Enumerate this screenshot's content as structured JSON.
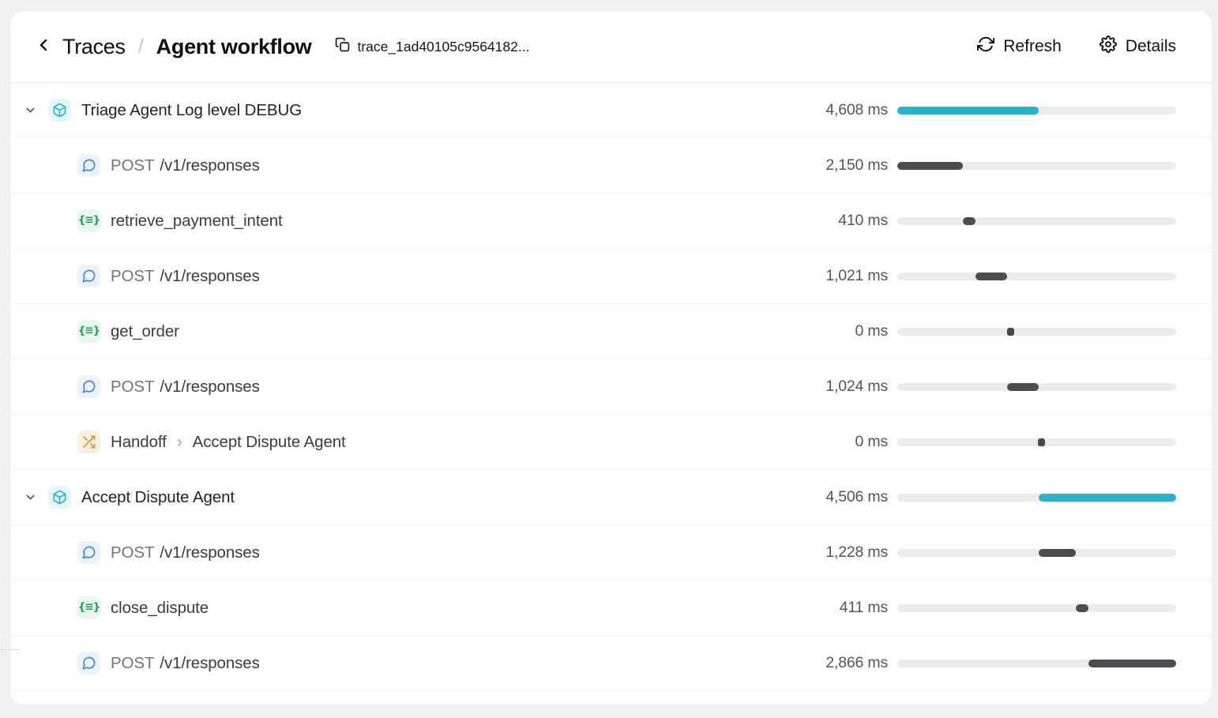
{
  "header": {
    "breadcrumb_parent": "Traces",
    "breadcrumb_separator": "/",
    "title": "Agent workflow",
    "trace_id": "trace_1ad40105c9564182...",
    "refresh_label": "Refresh",
    "details_label": "Details"
  },
  "timeline": {
    "total_ms": 9114,
    "track_color": "#ececee",
    "accent_color": "#2ab2ca",
    "dark_color": "#4d4d51",
    "tick_color": "#47474b"
  },
  "icon_styles": {
    "agent": {
      "name": "agent-cube-icon",
      "color": "#21b1c9",
      "bg": "#e6f6fa"
    },
    "http": {
      "name": "chat-bubble-icon",
      "color": "#3f83f7",
      "bg": "#edf3fe"
    },
    "function": {
      "name": "function-braces-icon",
      "color": "#18a34b",
      "bg": "#e9f7ee",
      "glyph": "{≡}"
    },
    "handoff": {
      "name": "handoff-shuffle-icon",
      "color": "#d3993f",
      "bg": "#faf0df"
    }
  },
  "rows": [
    {
      "kind": "agent",
      "depth": 0,
      "expanded": true,
      "label": "Triage Agent Log level DEBUG",
      "duration": "4,608 ms",
      "bar": {
        "left_pct": 0,
        "width_pct": 50.6,
        "variant": "accent"
      }
    },
    {
      "kind": "http",
      "depth": 1,
      "method": "POST",
      "path": "/v1/responses",
      "duration": "2,150 ms",
      "bar": {
        "left_pct": 0,
        "width_pct": 23.6,
        "variant": "dark"
      }
    },
    {
      "kind": "function",
      "depth": 1,
      "label": "retrieve_payment_intent",
      "duration": "410 ms",
      "bar": {
        "left_pct": 23.6,
        "width_pct": 4.5,
        "variant": "dark"
      }
    },
    {
      "kind": "http",
      "depth": 1,
      "method": "POST",
      "path": "/v1/responses",
      "duration": "1,021 ms",
      "bar": {
        "left_pct": 28.1,
        "width_pct": 11.2,
        "variant": "dark"
      }
    },
    {
      "kind": "function",
      "depth": 1,
      "label": "get_order",
      "duration": "0 ms",
      "bar": {
        "left_pct": 39.3,
        "width_pct": 0,
        "variant": "tick"
      }
    },
    {
      "kind": "http",
      "depth": 1,
      "method": "POST",
      "path": "/v1/responses",
      "duration": "1,024 ms",
      "bar": {
        "left_pct": 39.4,
        "width_pct": 11.2,
        "variant": "dark"
      }
    },
    {
      "kind": "handoff",
      "depth": 1,
      "label": "Handoff",
      "target": "Accept Dispute Agent",
      "duration": "0 ms",
      "bar": {
        "left_pct": 50.3,
        "width_pct": 0,
        "variant": "tick"
      }
    },
    {
      "kind": "agent",
      "depth": 0,
      "expanded": true,
      "label": "Accept Dispute Agent",
      "duration": "4,506 ms",
      "bar": {
        "left_pct": 50.6,
        "width_pct": 49.4,
        "variant": "accent"
      }
    },
    {
      "kind": "http",
      "depth": 1,
      "method": "POST",
      "path": "/v1/responses",
      "duration": "1,228 ms",
      "bar": {
        "left_pct": 50.6,
        "width_pct": 13.5,
        "variant": "dark"
      }
    },
    {
      "kind": "function",
      "depth": 1,
      "label": "close_dispute",
      "duration": "411 ms",
      "bar": {
        "left_pct": 64.1,
        "width_pct": 4.5,
        "variant": "dark"
      }
    },
    {
      "kind": "http",
      "depth": 1,
      "method": "POST",
      "path": "/v1/responses",
      "duration": "2,866 ms",
      "bar": {
        "left_pct": 68.6,
        "width_pct": 31.4,
        "variant": "dark"
      }
    }
  ]
}
